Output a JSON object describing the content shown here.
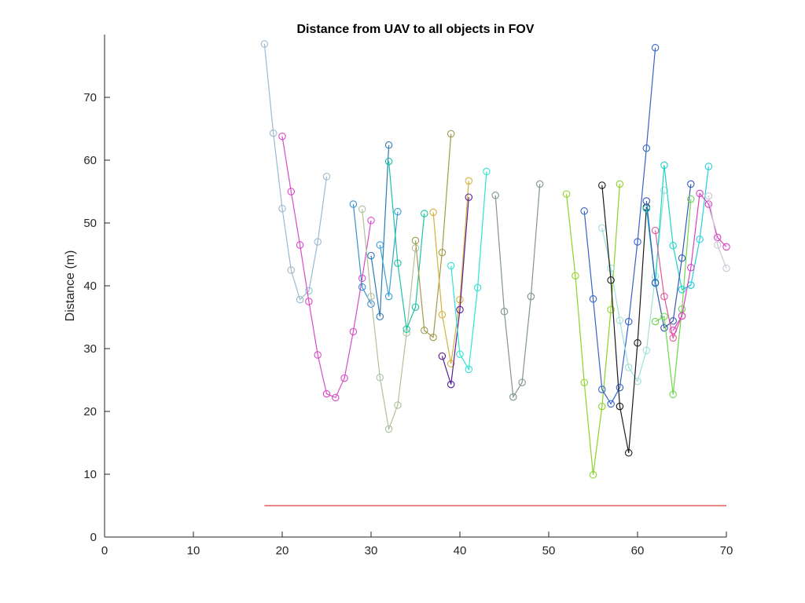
{
  "chart_data": {
    "type": "line",
    "title": "Distance from UAV to all objects in FOV",
    "xlabel": "",
    "ylabel": "Distance (m)",
    "xlim": [
      0,
      70
    ],
    "ylim": [
      0,
      80
    ],
    "xticks": [
      0,
      10,
      20,
      30,
      40,
      50,
      60,
      70
    ],
    "yticks": [
      0,
      10,
      20,
      30,
      40,
      50,
      60,
      70
    ],
    "xtick_labels": [
      "0",
      "10",
      "20",
      "30",
      "40",
      "50",
      "60",
      "70"
    ],
    "ytick_labels": [
      "0",
      "10",
      "20",
      "30",
      "40",
      "50",
      "60",
      "70"
    ],
    "grid": false,
    "marker": "circle",
    "series": [
      {
        "color": "#9bbad0",
        "x": [
          18,
          19,
          20,
          21,
          22,
          23,
          24,
          25
        ],
        "y": [
          78.5,
          64.3,
          52.3,
          42.5,
          37.8,
          39.2,
          47.0,
          57.4
        ]
      },
      {
        "color": "#d94bc8",
        "x": [
          20,
          21,
          22,
          23,
          24,
          25,
          26,
          27,
          28,
          29,
          30
        ],
        "y": [
          63.8,
          55.0,
          46.5,
          37.5,
          29.0,
          22.8,
          22.2,
          25.3,
          32.7,
          41.2,
          50.4
        ]
      },
      {
        "color": "#3a8fd6",
        "x": [
          28,
          29,
          30
        ],
        "y": [
          53.0,
          39.8,
          37.1
        ]
      },
      {
        "color": "#aec29d",
        "x": [
          29,
          30,
          31,
          32,
          33,
          34,
          35
        ],
        "y": [
          52.2,
          38.3,
          25.4,
          17.2,
          21.0,
          32.5,
          46.0
        ]
      },
      {
        "color": "#2f7ab5",
        "x": [
          30,
          31,
          32
        ],
        "y": [
          44.8,
          35.1,
          62.4
        ]
      },
      {
        "color": "#3ea0d2",
        "x": [
          31,
          32,
          33
        ],
        "y": [
          46.5,
          38.3,
          51.8
        ]
      },
      {
        "color": "#18c4a2",
        "x": [
          32,
          33,
          34,
          35,
          36
        ],
        "y": [
          59.8,
          43.6,
          33.1,
          36.6,
          51.5
        ]
      },
      {
        "color": "#a29a4a",
        "x": [
          35,
          36,
          37,
          38,
          39
        ],
        "y": [
          47.2,
          32.9,
          31.8,
          45.3,
          64.2
        ]
      },
      {
        "color": "#d6b03c",
        "x": [
          37,
          38,
          39,
          40,
          41
        ],
        "y": [
          51.7,
          35.4,
          27.6,
          37.8,
          56.7
        ]
      },
      {
        "color": "#5b1e94",
        "x": [
          38,
          39,
          40,
          41
        ],
        "y": [
          28.8,
          24.3,
          36.2,
          54.1
        ]
      },
      {
        "color": "#2ee4d4",
        "x": [
          39,
          40,
          41,
          42,
          43
        ],
        "y": [
          43.2,
          29.1,
          26.7,
          39.7,
          58.2
        ]
      },
      {
        "color": "#7e9592",
        "x": [
          44,
          45,
          46,
          47,
          48,
          49
        ],
        "y": [
          54.4,
          35.9,
          22.3,
          24.6,
          38.3,
          56.2
        ]
      },
      {
        "color": "#8fd22a",
        "x": [
          52,
          53,
          54,
          55,
          56,
          57,
          58
        ],
        "y": [
          54.6,
          41.6,
          24.6,
          9.9,
          20.8,
          36.2,
          56.2
        ]
      },
      {
        "color": "#3563c7",
        "x": [
          54,
          55,
          56,
          57,
          58,
          59,
          60,
          61,
          62
        ],
        "y": [
          51.9,
          37.9,
          23.5,
          21.2,
          23.8,
          34.3,
          47.0,
          61.9,
          77.9
        ]
      },
      {
        "color": "#9fe0d8",
        "x": [
          56,
          57,
          58,
          59,
          60,
          61,
          62,
          63
        ],
        "y": [
          49.2,
          42.8,
          34.5,
          27.0,
          24.8,
          29.7,
          41.5,
          55.2
        ]
      },
      {
        "color": "#1a1a1a",
        "x": [
          56,
          57,
          58,
          59,
          60,
          61
        ],
        "y": [
          56.0,
          40.9,
          20.8,
          13.4,
          30.9,
          52.5
        ]
      },
      {
        "color": "#1bd4c8",
        "x": [
          61,
          62,
          63,
          64,
          65,
          66
        ],
        "y": [
          52.3,
          40.4,
          59.2,
          46.4,
          39.4,
          40.1
        ]
      },
      {
        "color": "#3457b8",
        "x": [
          61,
          62,
          63,
          64,
          65,
          66
        ],
        "y": [
          53.5,
          40.5,
          33.3,
          34.4,
          44.4,
          56.2
        ]
      },
      {
        "color": "#e05a99",
        "x": [
          62,
          63,
          64,
          65
        ],
        "y": [
          48.8,
          38.3,
          31.7,
          35.2
        ]
      },
      {
        "color": "#6fd74e",
        "x": [
          62,
          63,
          64,
          65,
          66
        ],
        "y": [
          34.3,
          35.1,
          22.7,
          36.3,
          53.8
        ]
      },
      {
        "color": "#24cfe0",
        "x": [
          65,
          66,
          67,
          68
        ],
        "y": [
          39.4,
          40.1,
          47.4,
          59.0
        ]
      },
      {
        "color": "#d940c3",
        "x": [
          64,
          65,
          66,
          67,
          68,
          69,
          70
        ],
        "y": [
          32.9,
          35.2,
          42.9,
          54.7,
          53.0,
          47.7,
          46.2
        ]
      },
      {
        "color": "#c9c9d6",
        "x": [
          68,
          69,
          70
        ],
        "y": [
          54.3,
          46.5,
          42.8
        ]
      }
    ],
    "threshold": {
      "color": "#e23a3a",
      "x": [
        18,
        70
      ],
      "y": [
        5.0,
        5.0
      ]
    }
  }
}
